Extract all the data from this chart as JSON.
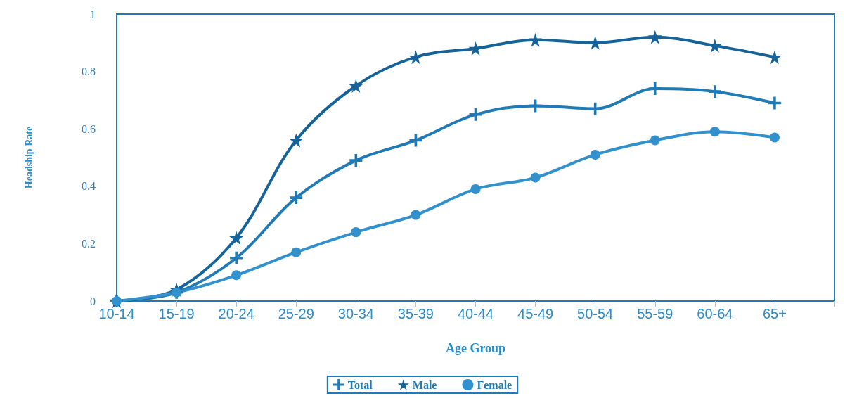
{
  "chart_data": {
    "type": "line",
    "xlabel": "Age Group",
    "ylabel": "Headship Rate",
    "categories": [
      "10-14",
      "15-19",
      "20-24",
      "25-29",
      "30-34",
      "35-39",
      "40-44",
      "45-49",
      "50-54",
      "55-59",
      "60-64",
      "65+"
    ],
    "ylim": [
      0,
      1
    ],
    "yticks": [
      0,
      0.2,
      0.4,
      0.6,
      0.8,
      1
    ],
    "grid": false,
    "legend": "bottom",
    "line_style": "solid",
    "series": [
      {
        "name": "Total",
        "color": "#1f7ab5",
        "marker": "cross",
        "values": [
          0,
          0.03,
          0.15,
          0.36,
          0.49,
          0.56,
          0.65,
          0.68,
          0.67,
          0.74,
          0.73,
          0.69
        ]
      },
      {
        "name": "Male",
        "color": "#16639a",
        "marker": "star",
        "values": [
          0,
          0.04,
          0.22,
          0.56,
          0.75,
          0.85,
          0.88,
          0.91,
          0.9,
          0.92,
          0.89,
          0.85
        ]
      },
      {
        "name": "Female",
        "color": "#3290cc",
        "marker": "circle",
        "values": [
          0,
          0.03,
          0.09,
          0.17,
          0.24,
          0.3,
          0.39,
          0.43,
          0.51,
          0.56,
          0.59,
          0.57
        ]
      }
    ]
  }
}
